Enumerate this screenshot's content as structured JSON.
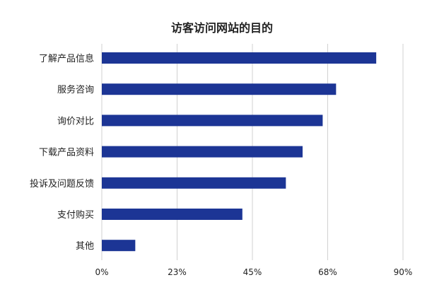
{
  "chart_data": {
    "type": "bar",
    "orientation": "horizontal",
    "title": "访客访问网站的目的",
    "categories": [
      "了解产品信息",
      "服务咨询",
      "询价对比",
      "下载产品资料",
      "投诉及问题反馈",
      "支付购买",
      "其他"
    ],
    "values": [
      82,
      70,
      66,
      60,
      55,
      42,
      10
    ],
    "xticks": [
      "0%",
      "23%",
      "45%",
      "68%",
      "90%"
    ],
    "xlim": [
      0,
      90
    ],
    "grid": "vertical",
    "bar_color": "#1c3595"
  }
}
